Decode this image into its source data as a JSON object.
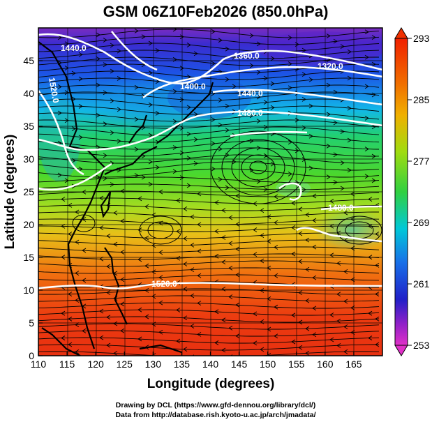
{
  "title": "GSM 06Z10Feb2026 (850.0hPa)",
  "xlabel": "Longitude (degrees)",
  "ylabel": "Latitude  (degrees)",
  "credits": {
    "line1": "Drawing by DCL (https://www.gfd-dennou.org/library/dcl/)",
    "line2": "Data from http://database.rish.kyoto-u.ac.jp/arch/jmadata/"
  },
  "map": {
    "lon_range": [
      110,
      170
    ],
    "lat_range": [
      0,
      50
    ],
    "lon_ticks": [
      "110",
      "115",
      "120",
      "125",
      "130",
      "135",
      "140",
      "145",
      "150",
      "155",
      "160",
      "165"
    ],
    "lat_ticks": [
      "0",
      "5",
      "10",
      "15",
      "20",
      "25",
      "30",
      "35",
      "40",
      "45"
    ]
  },
  "colorbar": {
    "ticks": [
      "253",
      "261",
      "269",
      "277",
      "285",
      "293"
    ],
    "colors": [
      "#e030c8",
      "#2020c8",
      "#00b0f0",
      "#30d040",
      "#f0a000",
      "#f03000"
    ]
  },
  "contours": {
    "labels": [
      "1440.0",
      "1360.0",
      "1320.0",
      "1400.0",
      "1440.0",
      "1480.0",
      "1480.0",
      "1520.0",
      "1520.0"
    ]
  }
}
